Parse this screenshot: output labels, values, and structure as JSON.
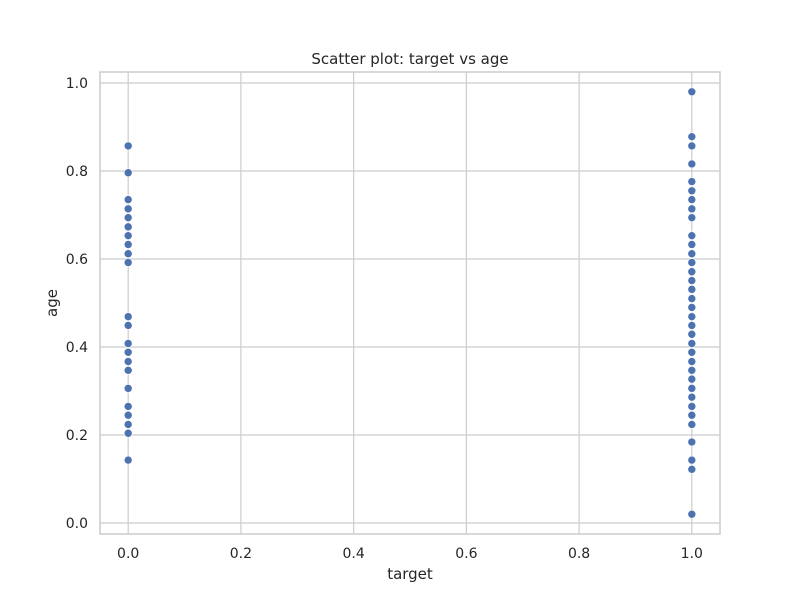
{
  "chart_data": {
    "type": "scatter",
    "title": "Scatter plot: target vs age",
    "xlabel": "target",
    "ylabel": "age",
    "xlim": [
      -0.05,
      1.05
    ],
    "ylim": [
      -0.025,
      1.025
    ],
    "xticks": [
      0.0,
      0.2,
      0.4,
      0.6,
      0.8,
      1.0
    ],
    "yticks": [
      0.0,
      0.2,
      0.4,
      0.6,
      0.8,
      1.0
    ],
    "xtick_labels": [
      "0.0",
      "0.2",
      "0.4",
      "0.6",
      "0.8",
      "1.0"
    ],
    "ytick_labels": [
      "0.0",
      "0.2",
      "0.4",
      "0.6",
      "0.8",
      "1.0"
    ],
    "grid": true,
    "colors": {
      "marker": "#4c72b0",
      "grid": "#cccccc",
      "frame": "#cccccc"
    },
    "series": [
      {
        "x": [
          0,
          0,
          0,
          0,
          0,
          0,
          0,
          0,
          0,
          0,
          0,
          0,
          0,
          0,
          0,
          0,
          0,
          0,
          0,
          0,
          0,
          0,
          0,
          0,
          0
        ],
        "y": [
          0.857,
          0.796,
          0.735,
          0.714,
          0.694,
          0.673,
          0.653,
          0.633,
          0.612,
          0.592,
          0.469,
          0.449,
          0.408,
          0.388,
          0.367,
          0.347,
          0.306,
          0.265,
          0.245,
          0.224,
          0.204,
          0.143,
          0.143,
          0.306,
          0.388
        ]
      },
      {
        "x": [
          1,
          1,
          1,
          1,
          1,
          1,
          1,
          1,
          1,
          1,
          1,
          1,
          1,
          1,
          1,
          1,
          1,
          1,
          1,
          1,
          1,
          1,
          1,
          1,
          1,
          1,
          1,
          1,
          1,
          1,
          1,
          1,
          1,
          1,
          1,
          1,
          1,
          1,
          1,
          1,
          1,
          1
        ],
        "y": [
          0.98,
          0.878,
          0.857,
          0.816,
          0.776,
          0.755,
          0.735,
          0.714,
          0.694,
          0.653,
          0.633,
          0.612,
          0.592,
          0.571,
          0.551,
          0.531,
          0.51,
          0.49,
          0.469,
          0.449,
          0.429,
          0.408,
          0.388,
          0.367,
          0.347,
          0.327,
          0.306,
          0.286,
          0.265,
          0.245,
          0.224,
          0.184,
          0.143,
          0.122,
          0.02,
          0.714,
          0.633,
          0.551,
          0.49,
          0.408,
          0.306,
          0.245
        ]
      }
    ]
  }
}
